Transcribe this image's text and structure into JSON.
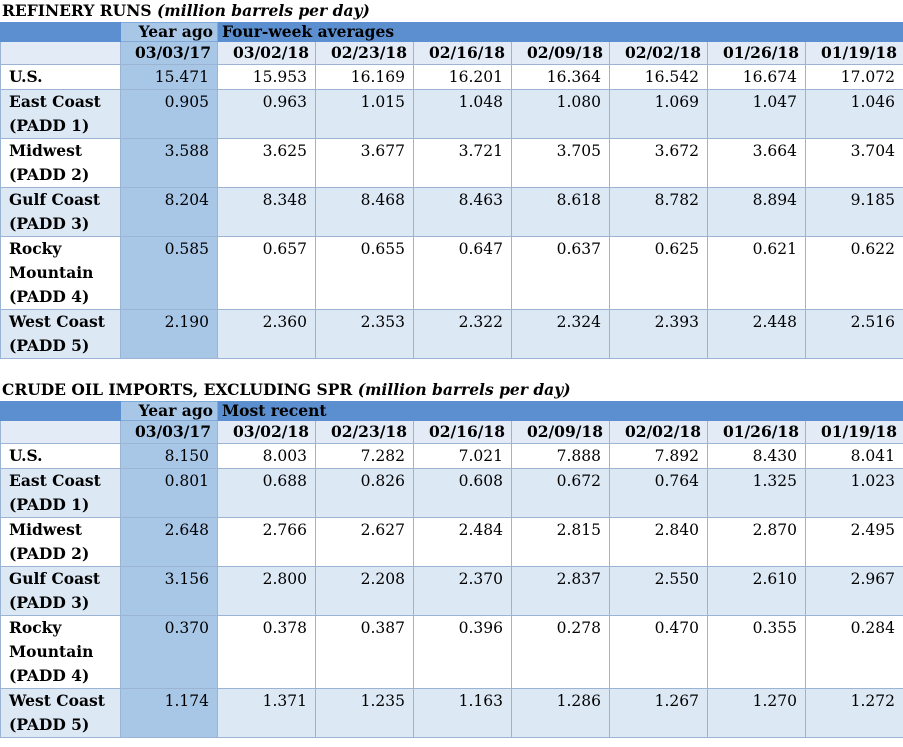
{
  "tables": [
    {
      "title": "REFINERY RUNS",
      "subtitle": "(million barrels per day)",
      "year_ago_label": "Year ago",
      "group_label": "Four-week averages",
      "dates": [
        "03/03/17",
        "03/02/18",
        "02/23/18",
        "02/16/18",
        "02/09/18",
        "02/02/18",
        "01/26/18",
        "01/19/18"
      ],
      "rows": [
        {
          "region": "U.S.",
          "values": [
            "15.471",
            "15.953",
            "16.169",
            "16.201",
            "16.364",
            "16.542",
            "16.674",
            "17.072"
          ]
        },
        {
          "region": "East Coast (PADD 1)",
          "values": [
            "0.905",
            "0.963",
            "1.015",
            "1.048",
            "1.080",
            "1.069",
            "1.047",
            "1.046"
          ]
        },
        {
          "region": "Midwest (PADD 2)",
          "values": [
            "3.588",
            "3.625",
            "3.677",
            "3.721",
            "3.705",
            "3.672",
            "3.664",
            "3.704"
          ]
        },
        {
          "region": "Gulf Coast (PADD 3)",
          "values": [
            "8.204",
            "8.348",
            "8.468",
            "8.463",
            "8.618",
            "8.782",
            "8.894",
            "9.185"
          ]
        },
        {
          "region": "Rocky Mountain (PADD 4)",
          "values": [
            "0.585",
            "0.657",
            "0.655",
            "0.647",
            "0.637",
            "0.625",
            "0.621",
            "0.622"
          ]
        },
        {
          "region": "West Coast (PADD 5)",
          "values": [
            "2.190",
            "2.360",
            "2.353",
            "2.322",
            "2.324",
            "2.393",
            "2.448",
            "2.516"
          ]
        }
      ]
    },
    {
      "title": "CRUDE OIL IMPORTS, EXCLUDING SPR",
      "subtitle": "(million barrels per day)",
      "year_ago_label": "Year ago",
      "group_label": "Most recent",
      "dates": [
        "03/03/17",
        "03/02/18",
        "02/23/18",
        "02/16/18",
        "02/09/18",
        "02/02/18",
        "01/26/18",
        "01/19/18"
      ],
      "rows": [
        {
          "region": "U.S.",
          "values": [
            "8.150",
            "8.003",
            "7.282",
            "7.021",
            "7.888",
            "7.892",
            "8.430",
            "8.041"
          ]
        },
        {
          "region": "East Coast (PADD 1)",
          "values": [
            "0.801",
            "0.688",
            "0.826",
            "0.608",
            "0.672",
            "0.764",
            "1.325",
            "1.023"
          ]
        },
        {
          "region": "Midwest (PADD 2)",
          "values": [
            "2.648",
            "2.766",
            "2.627",
            "2.484",
            "2.815",
            "2.840",
            "2.870",
            "2.495"
          ]
        },
        {
          "region": "Gulf Coast (PADD 3)",
          "values": [
            "3.156",
            "2.800",
            "2.208",
            "2.370",
            "2.837",
            "2.550",
            "2.610",
            "2.967"
          ]
        },
        {
          "region": "Rocky Mountain (PADD 4)",
          "values": [
            "0.370",
            "0.378",
            "0.387",
            "0.396",
            "0.278",
            "0.470",
            "0.355",
            "0.284"
          ]
        },
        {
          "region": "West Coast (PADD 5)",
          "values": [
            "1.174",
            "1.371",
            "1.235",
            "1.163",
            "1.286",
            "1.267",
            "1.270",
            "1.272"
          ]
        }
      ]
    }
  ]
}
